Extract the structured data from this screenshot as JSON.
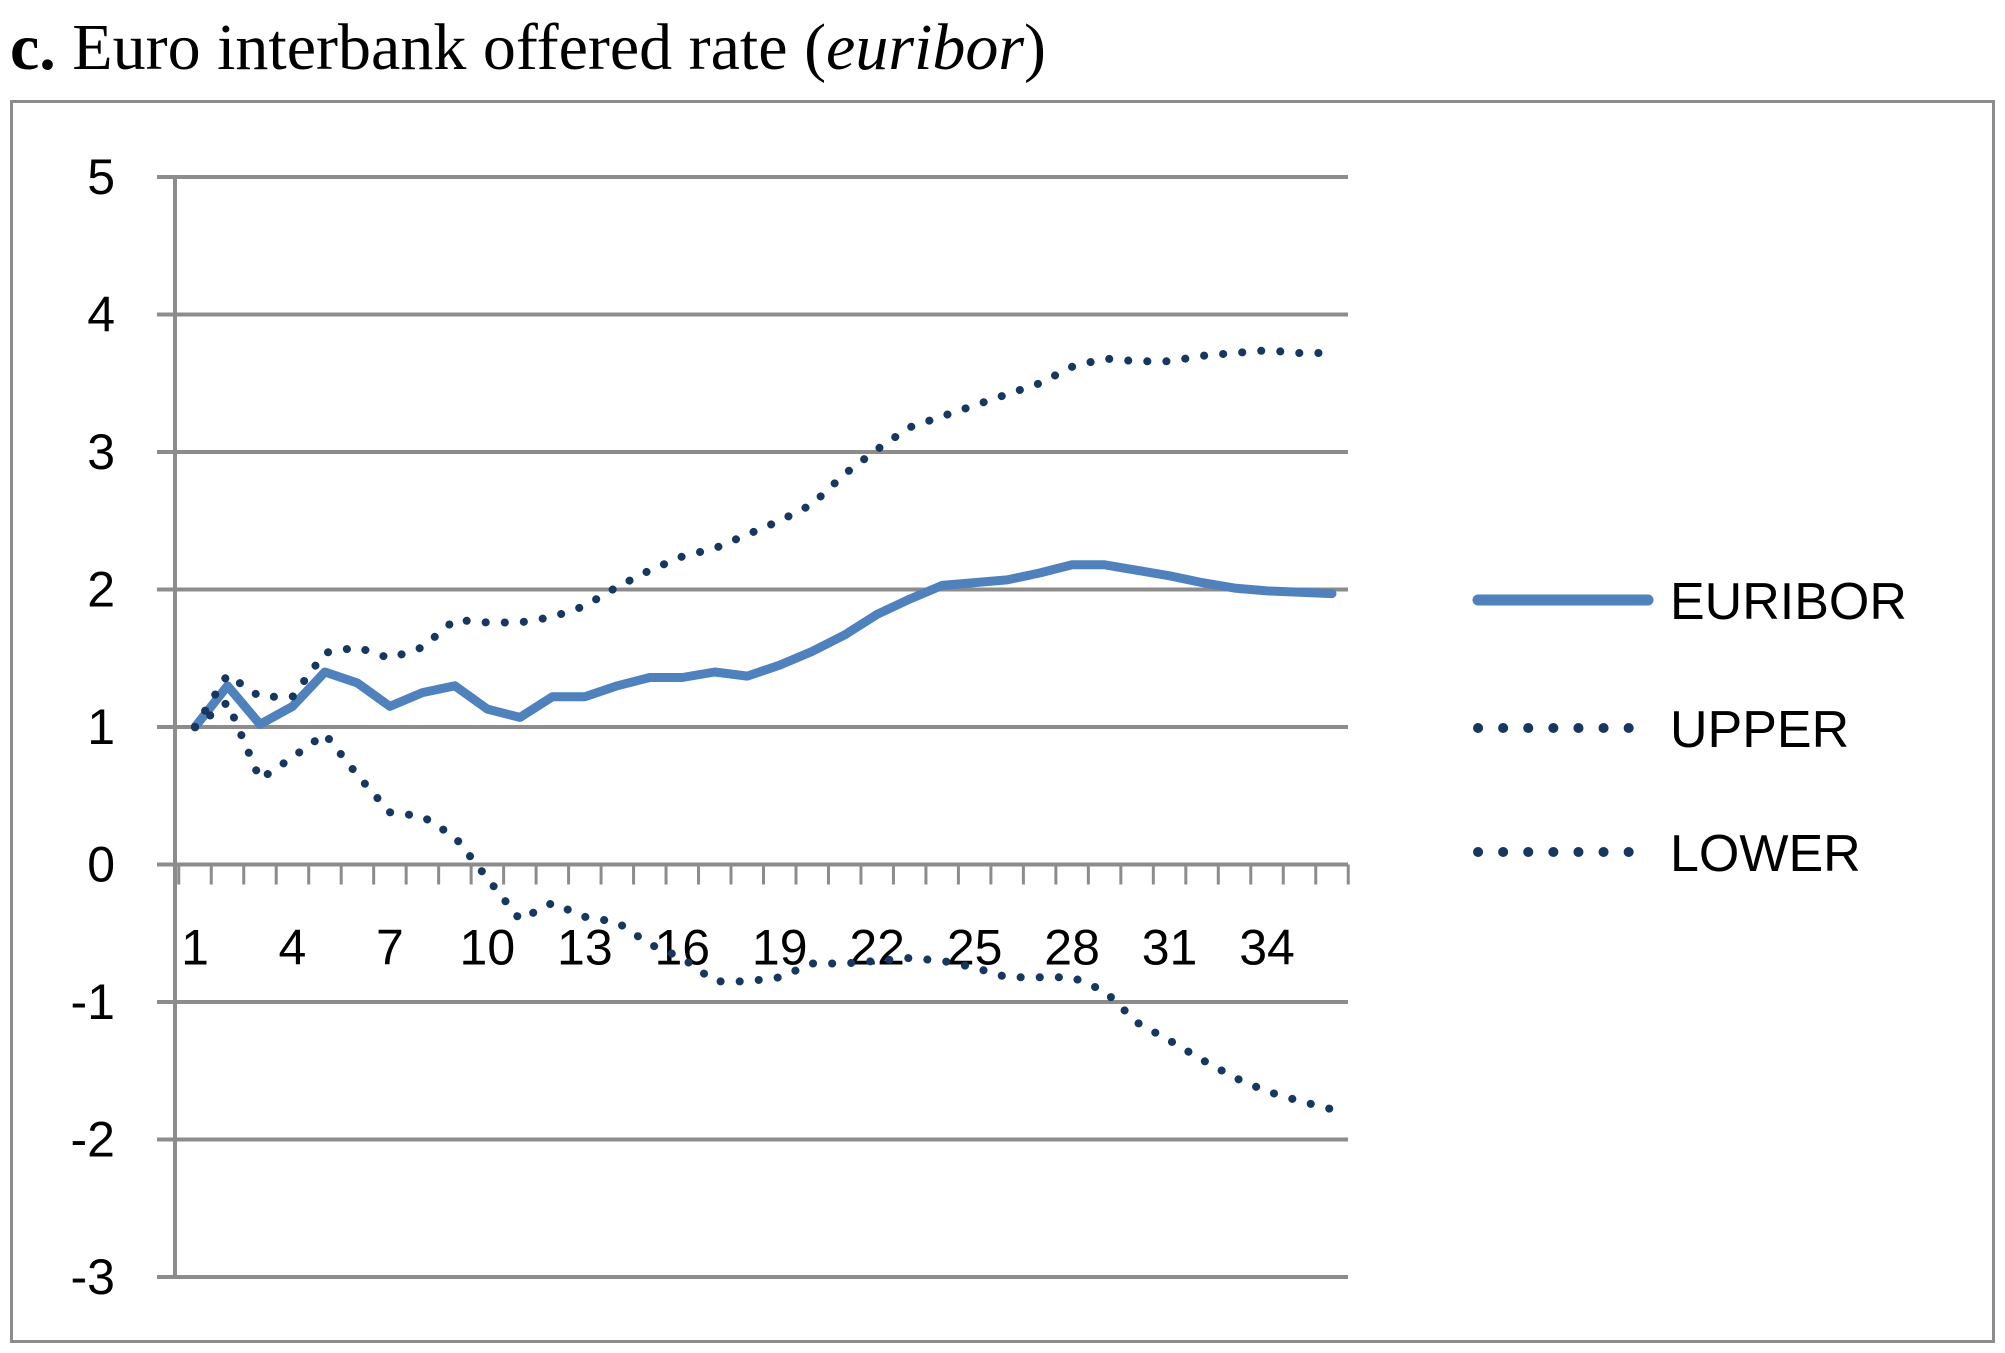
{
  "title": {
    "prefix": "c.",
    "text": "Euro interbank offered rate (",
    "term": "euribor",
    "suffix": ")"
  },
  "chart_data": {
    "type": "line",
    "x": [
      1,
      2,
      3,
      4,
      5,
      6,
      7,
      8,
      9,
      10,
      11,
      12,
      13,
      14,
      15,
      16,
      17,
      18,
      19,
      20,
      21,
      22,
      23,
      24,
      25,
      26,
      27,
      28,
      29,
      30,
      31,
      32,
      33,
      34,
      35,
      36
    ],
    "x_tick_labels": [
      "1",
      "4",
      "7",
      "10",
      "13",
      "16",
      "19",
      "22",
      "25",
      "28",
      "31",
      "34"
    ],
    "y_tick_labels": [
      "5",
      "4",
      "3",
      "2",
      "1",
      "0",
      "-1",
      "-2",
      "-3"
    ],
    "ylim": [
      -3,
      5
    ],
    "grid": true,
    "legend_position": "right",
    "series": [
      {
        "name": "EURIBOR",
        "style": "solid",
        "color": "#4f81bd",
        "values": [
          1.0,
          1.3,
          1.02,
          1.15,
          1.4,
          1.32,
          1.15,
          1.25,
          1.3,
          1.13,
          1.07,
          1.22,
          1.22,
          1.3,
          1.36,
          1.36,
          1.4,
          1.37,
          1.45,
          1.55,
          1.67,
          1.82,
          1.93,
          2.03,
          2.05,
          2.07,
          2.12,
          2.18,
          2.18,
          2.14,
          2.1,
          2.05,
          2.01,
          1.99,
          1.98,
          1.97
        ]
      },
      {
        "name": "UPPER",
        "style": "dotted",
        "color": "#17375e",
        "values": [
          1.0,
          1.38,
          1.22,
          1.22,
          1.54,
          1.58,
          1.5,
          1.58,
          1.78,
          1.76,
          1.76,
          1.8,
          1.88,
          2.02,
          2.14,
          2.24,
          2.3,
          2.4,
          2.5,
          2.62,
          2.84,
          3.02,
          3.18,
          3.26,
          3.34,
          3.42,
          3.5,
          3.62,
          3.68,
          3.66,
          3.66,
          3.7,
          3.72,
          3.74,
          3.72,
          3.72
        ]
      },
      {
        "name": "LOWER",
        "style": "dotted",
        "color": "#17375e",
        "values": [
          1.0,
          1.18,
          0.62,
          0.78,
          0.95,
          0.65,
          0.38,
          0.35,
          0.2,
          -0.1,
          -0.4,
          -0.28,
          -0.38,
          -0.42,
          -0.58,
          -0.68,
          -0.85,
          -0.85,
          -0.82,
          -0.72,
          -0.72,
          -0.7,
          -0.68,
          -0.7,
          -0.75,
          -0.82,
          -0.82,
          -0.82,
          -0.92,
          -1.15,
          -1.28,
          -1.42,
          -1.55,
          -1.65,
          -1.72,
          -1.78
        ]
      }
    ]
  }
}
